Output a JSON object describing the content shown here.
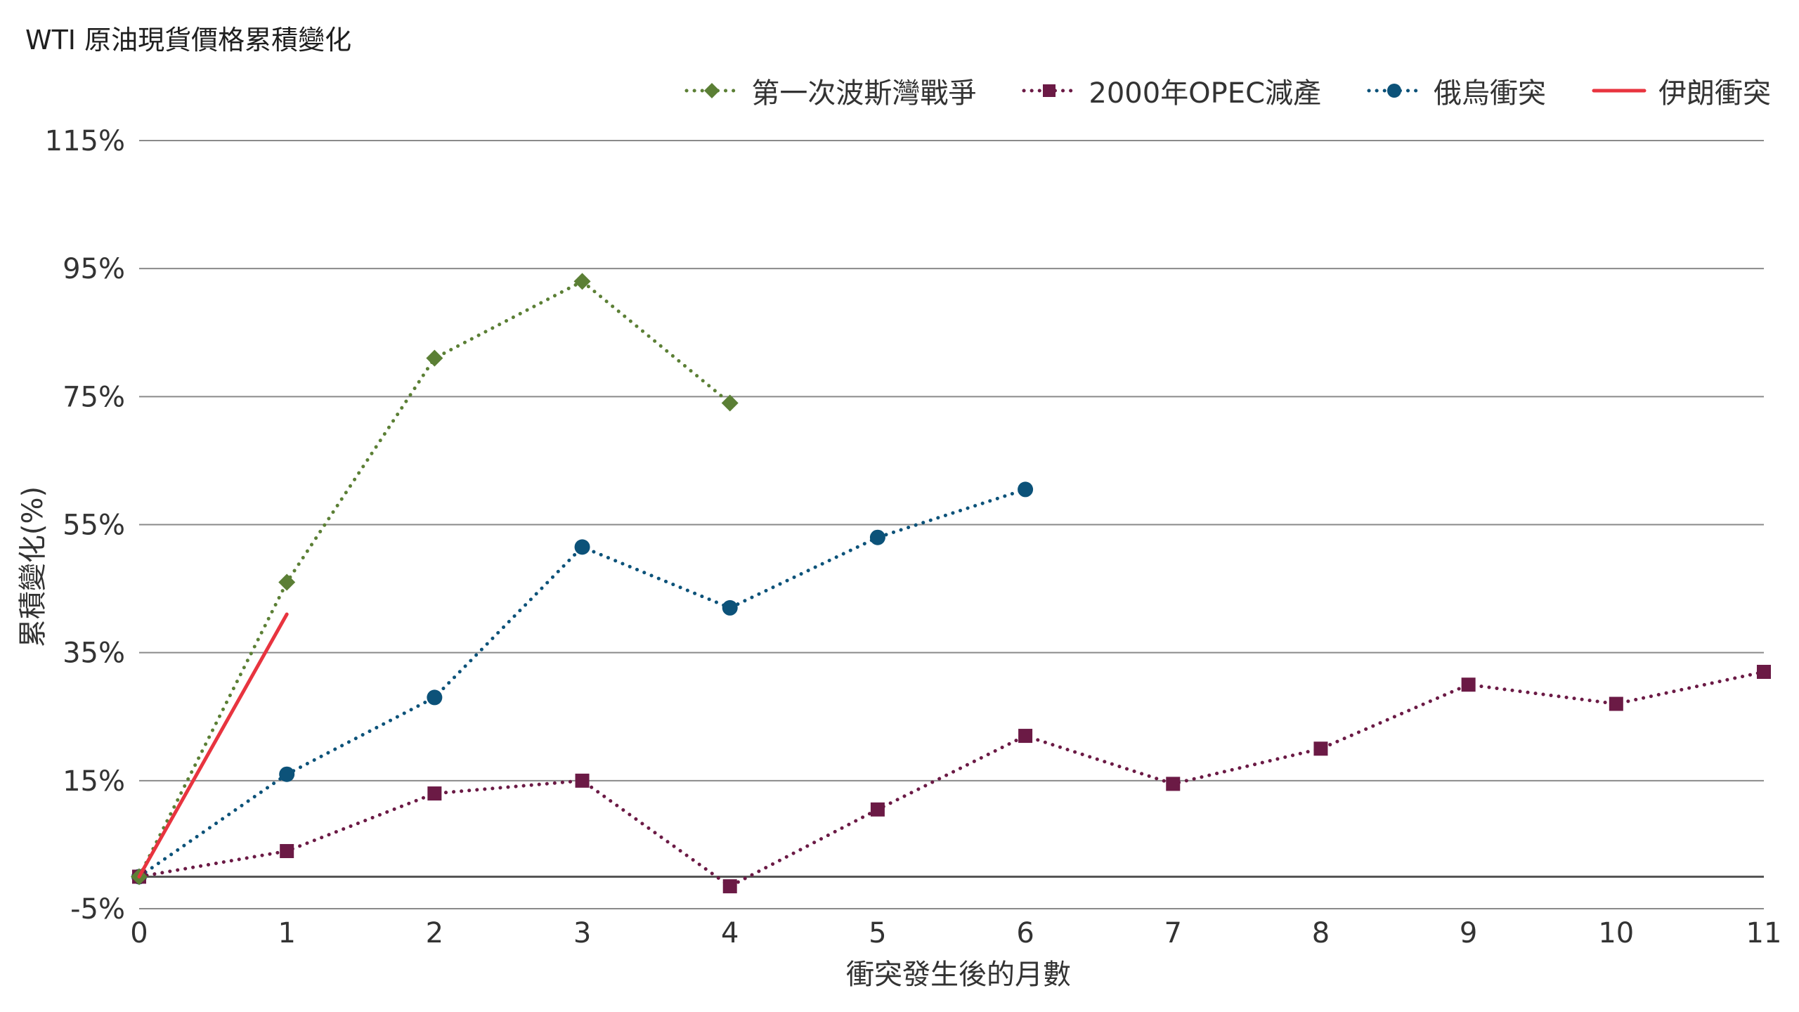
{
  "chart_data": {
    "type": "line",
    "title": "WTI 原油現貨價格累積變化",
    "xlabel": "衝突發生後的月數",
    "ylabel": "累積變化(%)",
    "x_ticks": [
      0,
      1,
      2,
      3,
      4,
      5,
      6,
      7,
      8,
      9,
      10,
      11
    ],
    "y_ticks": [
      -5,
      15,
      35,
      55,
      75,
      95,
      115
    ],
    "y_tick_labels": [
      "-5%",
      "15%",
      "35%",
      "55%",
      "75%",
      "95%",
      "115%"
    ],
    "xlim": [
      0,
      11
    ],
    "ylim": [
      -5,
      115
    ],
    "baseline": 0,
    "legend_position": "top-right",
    "series": [
      {
        "name": "第一次波斯灣戰爭",
        "color": "#5b7f35",
        "style": "dotted",
        "marker": "diamond",
        "x": [
          0,
          1,
          2,
          3,
          4
        ],
        "values": [
          0,
          46,
          81,
          93,
          74
        ]
      },
      {
        "name": "2000年OPEC減產",
        "color": "#6b1a45",
        "style": "dotted",
        "marker": "square",
        "x": [
          0,
          1,
          2,
          3,
          4,
          5,
          6,
          7,
          8,
          9,
          10,
          11
        ],
        "values": [
          0,
          4,
          13,
          15,
          -1.5,
          10.5,
          22,
          14.5,
          20,
          30,
          27,
          32
        ]
      },
      {
        "name": "俄烏衝突",
        "color": "#0c5279",
        "style": "dotted",
        "marker": "circle",
        "x": [
          0,
          1,
          2,
          3,
          4,
          5,
          6
        ],
        "values": [
          0,
          16,
          28,
          51.5,
          42,
          53,
          60.5
        ]
      },
      {
        "name": "伊朗衝突",
        "color": "#e8343f",
        "style": "solid",
        "marker": "none",
        "x": [
          0,
          1
        ],
        "values": [
          0,
          41
        ]
      }
    ]
  }
}
